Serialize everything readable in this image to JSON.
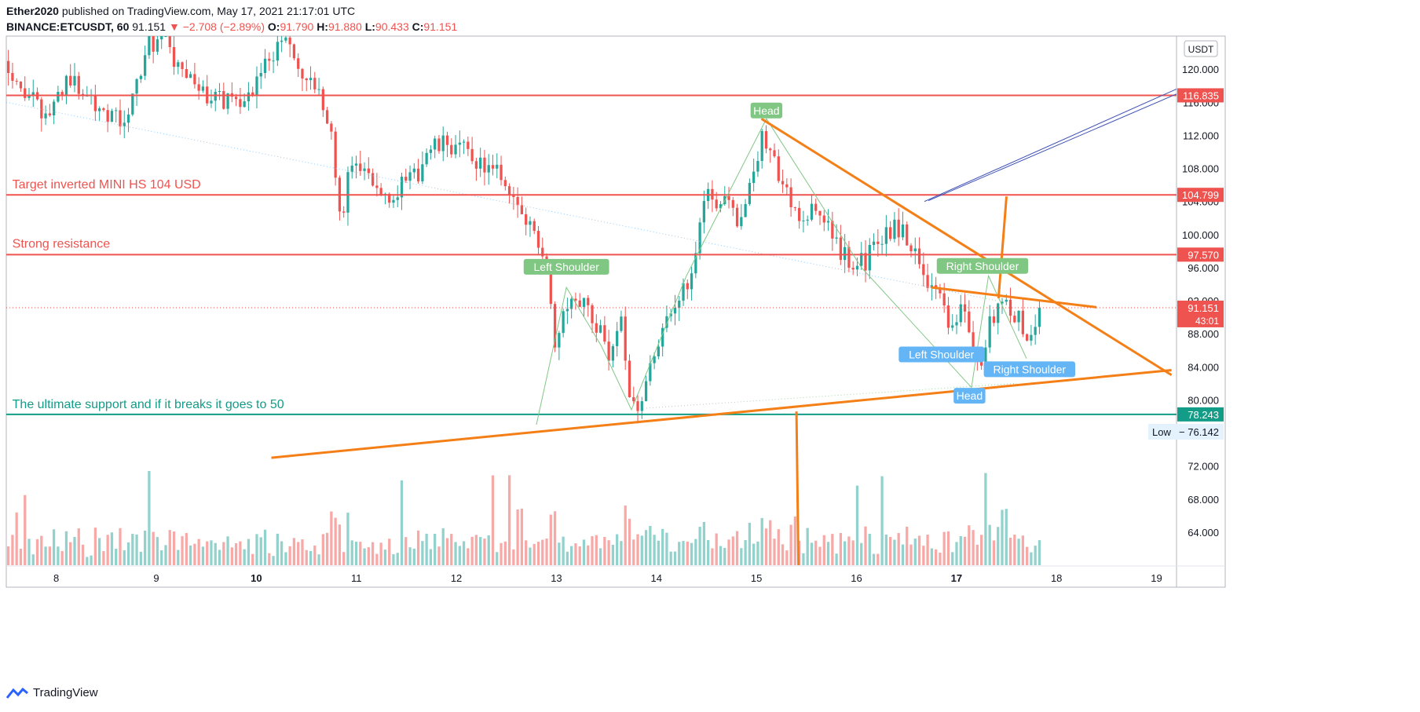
{
  "header": {
    "author": "Ether2020",
    "published_text": "published on TradingView.com, May 17, 2021 21:17:01 UTC",
    "symbol": "BINANCE:ETCUSDT, 60",
    "last": "91.151",
    "arrow": "▼",
    "change": "−2.708 (−2.89%)",
    "o_label": "O:",
    "o": "91.790",
    "h_label": "H:",
    "h": "91.880",
    "l_label": "L:",
    "l": "90.433",
    "c_label": "C:",
    "c": "91.151"
  },
  "footer": {
    "brand": "TradingView"
  },
  "colors": {
    "up": "#26a69a",
    "down": "#ef5350",
    "orange": "#f57f17",
    "teal": "#139c87",
    "green_label": "#81c784",
    "blue_label": "#64b5f6",
    "trend_blue": "#3f51b5"
  },
  "chart_data": {
    "type": "candlestick",
    "currency": "USDT",
    "ylim": [
      60,
      124
    ],
    "y_ticks": [
      {
        "value": 64,
        "label": "64.000"
      },
      {
        "value": 68,
        "label": "68.000"
      },
      {
        "value": 72,
        "label": "72.000"
      },
      {
        "value": 80,
        "label": "80.000"
      },
      {
        "value": 84,
        "label": "84.000"
      },
      {
        "value": 88,
        "label": "88.000"
      },
      {
        "value": 92,
        "label": "92.000"
      },
      {
        "value": 96,
        "label": "96.000"
      },
      {
        "value": 100,
        "label": "100.000"
      },
      {
        "value": 104,
        "label": "104.000"
      },
      {
        "value": 108,
        "label": "108.000"
      },
      {
        "value": 112,
        "label": "112.000"
      },
      {
        "value": 116,
        "label": "116.000"
      },
      {
        "value": 120,
        "label": "120.000"
      }
    ],
    "x_range": [
      7.5,
      19.2
    ],
    "x_ticks": [
      {
        "value": 8,
        "label": "8",
        "bold": false
      },
      {
        "value": 9,
        "label": "9",
        "bold": false
      },
      {
        "value": 10,
        "label": "10",
        "bold": true
      },
      {
        "value": 11,
        "label": "11",
        "bold": false
      },
      {
        "value": 12,
        "label": "12",
        "bold": false
      },
      {
        "value": 13,
        "label": "13",
        "bold": false
      },
      {
        "value": 14,
        "label": "14",
        "bold": false
      },
      {
        "value": 15,
        "label": "15",
        "bold": false
      },
      {
        "value": 16,
        "label": "16",
        "bold": false
      },
      {
        "value": 17,
        "label": "17",
        "bold": true
      },
      {
        "value": 18,
        "label": "18",
        "bold": false
      },
      {
        "value": 19,
        "label": "19",
        "bold": false
      }
    ],
    "price_path": [
      [
        7.5,
        121
      ],
      [
        7.7,
        117
      ],
      [
        7.9,
        114
      ],
      [
        8.1,
        119
      ],
      [
        8.3,
        117
      ],
      [
        8.5,
        115
      ],
      [
        8.7,
        113
      ],
      [
        8.8,
        118
      ],
      [
        8.9,
        123
      ],
      [
        9.1,
        124
      ],
      [
        9.2,
        120
      ],
      [
        9.4,
        118
      ],
      [
        9.6,
        116
      ],
      [
        9.8,
        117
      ],
      [
        9.9,
        116
      ],
      [
        10.1,
        121
      ],
      [
        10.3,
        124
      ],
      [
        10.4,
        120
      ],
      [
        10.6,
        117
      ],
      [
        10.75,
        113
      ],
      [
        10.8,
        106
      ],
      [
        10.85,
        100
      ],
      [
        10.9,
        108
      ],
      [
        11.1,
        107
      ],
      [
        11.3,
        105
      ],
      [
        11.5,
        106
      ],
      [
        11.6,
        107
      ],
      [
        11.7,
        110
      ],
      [
        11.9,
        111
      ],
      [
        12.1,
        110
      ],
      [
        12.3,
        108
      ],
      [
        12.45,
        107
      ],
      [
        12.55,
        105
      ],
      [
        12.7,
        101
      ],
      [
        12.8,
        100
      ],
      [
        12.9,
        97
      ],
      [
        12.95,
        91
      ],
      [
        13.0,
        86
      ],
      [
        13.05,
        90
      ],
      [
        13.15,
        93
      ],
      [
        13.25,
        92
      ],
      [
        13.35,
        90
      ],
      [
        13.45,
        88
      ],
      [
        13.55,
        85
      ],
      [
        13.65,
        89
      ],
      [
        13.72,
        82
      ],
      [
        13.8,
        79
      ],
      [
        13.9,
        82
      ],
      [
        14.0,
        87
      ],
      [
        14.1,
        89
      ],
      [
        14.2,
        91
      ],
      [
        14.3,
        94
      ],
      [
        14.4,
        99
      ],
      [
        14.5,
        106
      ],
      [
        14.6,
        104
      ],
      [
        14.7,
        105
      ],
      [
        14.8,
        102
      ],
      [
        14.9,
        104
      ],
      [
        15.0,
        108
      ],
      [
        15.05,
        113
      ],
      [
        15.15,
        110
      ],
      [
        15.25,
        106
      ],
      [
        15.35,
        104
      ],
      [
        15.45,
        102
      ],
      [
        15.6,
        103
      ],
      [
        15.7,
        101
      ],
      [
        15.8,
        99
      ],
      [
        15.9,
        97
      ],
      [
        16.0,
        96
      ],
      [
        16.1,
        97
      ],
      [
        16.2,
        99
      ],
      [
        16.3,
        100
      ],
      [
        16.4,
        101
      ],
      [
        16.5,
        100
      ],
      [
        16.6,
        97
      ],
      [
        16.7,
        95
      ],
      [
        16.8,
        93
      ],
      [
        16.9,
        90
      ],
      [
        17.0,
        88
      ],
      [
        17.05,
        92
      ],
      [
        17.1,
        90
      ],
      [
        17.2,
        84
      ],
      [
        17.28,
        86
      ],
      [
        17.35,
        90
      ],
      [
        17.45,
        92
      ],
      [
        17.55,
        91
      ],
      [
        17.65,
        89
      ],
      [
        17.72,
        87
      ],
      [
        17.78,
        89
      ],
      [
        17.85,
        91.15
      ]
    ],
    "horizontal_levels": [
      {
        "price": 116.835,
        "label": "116.835",
        "color": "#ef5350"
      },
      {
        "price": 104.799,
        "label": "104.799",
        "color": "#ef5350"
      },
      {
        "price": 97.57,
        "label": "97.570",
        "color": "#ef5350"
      },
      {
        "price": 78.243,
        "label": "78.243",
        "color": "#139c87"
      }
    ],
    "last_price": {
      "price": 91.151,
      "label": "91.151",
      "countdown": "43:01"
    },
    "low_marker": {
      "label": "Low",
      "value": "76.142"
    },
    "texts": [
      {
        "text": "Target inverted MINI HS 104 USD",
        "color": "#ef5350",
        "x": 7.56,
        "y": 105.6
      },
      {
        "text": "Strong resistance",
        "color": "#ef5350",
        "x": 7.56,
        "y": 98.4
      },
      {
        "text": "The ultimate support and if it breaks it goes to 50",
        "color": "#139c87",
        "x": 7.56,
        "y": 79.0
      }
    ],
    "pattern_labels": [
      {
        "text": "Left Shoulder",
        "bg": "#81c784",
        "x": 13.1,
        "y": 96.1
      },
      {
        "text": "Head",
        "bg": "#81c784",
        "x": 15.1,
        "y": 115.0
      },
      {
        "text": "Right Shoulder",
        "bg": "#81c784",
        "x": 17.26,
        "y": 96.2
      },
      {
        "text": "Left Shoulder",
        "bg": "#64b5f6",
        "x": 16.85,
        "y": 85.5
      },
      {
        "text": "Head",
        "bg": "#64b5f6",
        "x": 17.13,
        "y": 80.5
      },
      {
        "text": "Right Shoulder",
        "bg": "#64b5f6",
        "x": 17.73,
        "y": 83.7
      }
    ],
    "orange_lines": [
      [
        [
          10.15,
          73.0
        ],
        [
          19.15,
          83.6
        ]
      ],
      [
        [
          15.05,
          114.0
        ],
        [
          19.15,
          83.0
        ]
      ],
      [
        [
          16.75,
          93.6
        ],
        [
          18.4,
          91.2
        ]
      ],
      [
        [
          17.42,
          92.3
        ],
        [
          17.5,
          104.6
        ]
      ],
      [
        [
          15.4,
          78.6
        ],
        [
          15.42,
          60
        ]
      ]
    ],
    "blue_lines": [
      [
        [
          16.68,
          104.0
        ],
        [
          19.2,
          117.6
        ]
      ],
      [
        [
          16.72,
          104.1
        ],
        [
          19.2,
          117.0
        ]
      ]
    ],
    "green_zigzag": [
      [
        12.8,
        77.0
      ],
      [
        13.1,
        93.6
      ],
      [
        13.45,
        86.5
      ],
      [
        13.75,
        78.8
      ],
      [
        14.3,
        95
      ],
      [
        15.1,
        114.0
      ],
      [
        16.05,
        96
      ],
      [
        17.15,
        81.5
      ],
      [
        17.32,
        95
      ],
      [
        17.7,
        85
      ]
    ]
  }
}
